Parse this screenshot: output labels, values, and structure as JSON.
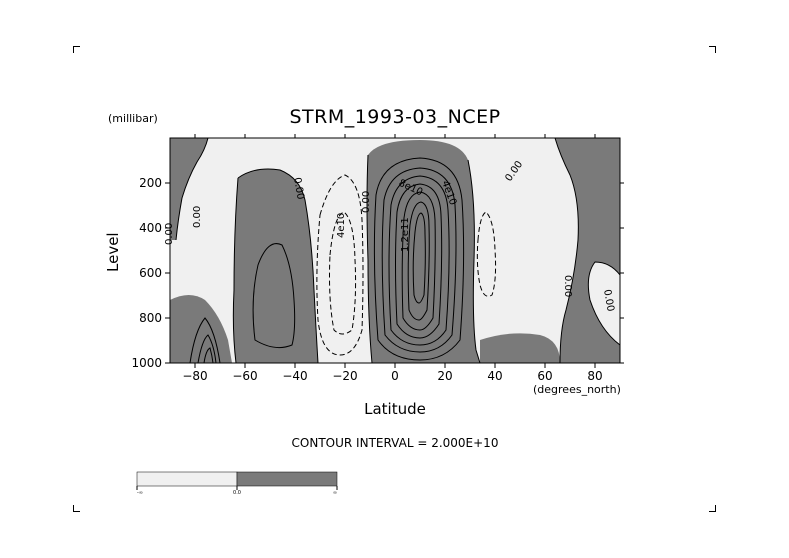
{
  "chart_data": {
    "type": "contour",
    "title": "STRM_1993-03_NCEP",
    "xlabel": "Latitude",
    "x_unit": "(degrees_north)",
    "ylabel": "Level",
    "y_unit": "(millibar)",
    "xlim": [
      -90,
      90
    ],
    "ylim": [
      1000,
      0
    ],
    "x_ticks": [
      -80,
      -60,
      -40,
      -20,
      0,
      20,
      40,
      60,
      80
    ],
    "x_tick_labels": [
      "−80",
      "−60",
      "−40",
      "−20",
      "0",
      "20",
      "40",
      "60",
      "80"
    ],
    "y_ticks": [
      200,
      400,
      600,
      800,
      1000
    ],
    "y_tick_labels": [
      "200",
      "400",
      "600",
      "800",
      "1000"
    ],
    "contour_interval_text": "CONTOUR INTERVAL = 2.000E+10",
    "contour_labels": [
      "0.00",
      "0.00",
      "0.00",
      "0.00",
      "4e10",
      "0.00",
      "8e10",
      "4e10",
      "1.2e11",
      "0.00",
      "0.00",
      "0.00"
    ],
    "shading": {
      "negative": "#f0f0f0",
      "positive": "#7a7a7a",
      "threshold": 0.0
    },
    "colorbar_labels": [
      "-∞",
      "0.0",
      "∞"
    ]
  },
  "colors": {
    "light_fill": "#f0f0f0",
    "dark_fill": "#7a7a7a",
    "line": "#000000"
  }
}
